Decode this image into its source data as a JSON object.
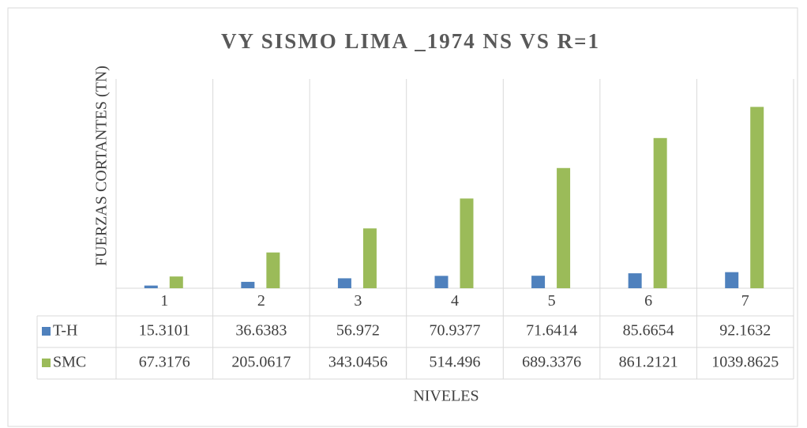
{
  "chart_data": {
    "type": "bar",
    "title": "VY SISMO LIMA _1974 NS VS R=1",
    "y_label": "FUERZAS CORTANTES (TN)",
    "x_label": "NIVELES",
    "categories": [
      "1",
      "2",
      "3",
      "4",
      "5",
      "6",
      "7"
    ],
    "series": [
      {
        "name": "T-H",
        "color": "#4f81bd",
        "values": [
          15.3101,
          36.6383,
          56.972,
          70.9377,
          71.6414,
          85.6654,
          92.1632
        ]
      },
      {
        "name": "SMC",
        "color": "#9bbb59",
        "values": [
          67.3176,
          205.0617,
          343.0456,
          514.496,
          689.3376,
          861.2121,
          1039.8625
        ]
      }
    ],
    "ylim": [
      0,
      1200
    ]
  }
}
